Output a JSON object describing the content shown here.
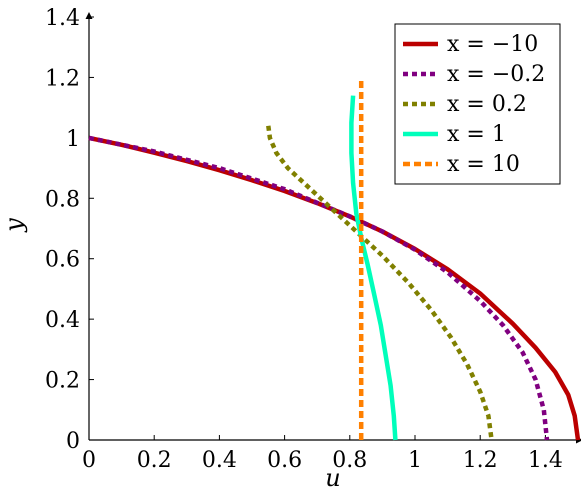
{
  "chart_data": {
    "type": "line",
    "title": "",
    "xlabel": "u",
    "ylabel": "y",
    "xlim": [
      0,
      1.5
    ],
    "ylim": [
      0,
      1.4
    ],
    "xticks": [
      "0",
      "0.2",
      "0.4",
      "0.6",
      "0.8",
      "1",
      "1.2",
      "1.4"
    ],
    "xtick_values": [
      0,
      0.2,
      0.4,
      0.6,
      0.8,
      1,
      1.2,
      1.4
    ],
    "yticks": [
      "0",
      "0.2",
      "0.4",
      "0.6",
      "0.8",
      "1",
      "1.2",
      "1.4"
    ],
    "ytick_values": [
      0,
      0.2,
      0.4,
      0.6,
      0.8,
      1,
      1.2,
      1.4
    ],
    "grid": false,
    "legend_position": "top-right",
    "series": [
      {
        "name": "x = −10",
        "color": "#bb0000",
        "dash": "solid",
        "x": [
          0,
          0.1,
          0.2,
          0.3,
          0.4,
          0.5,
          0.6,
          0.7,
          0.8,
          0.9,
          1.0,
          1.1,
          1.2,
          1.3,
          1.37,
          1.43,
          1.47,
          1.49,
          1.5
        ],
        "y": [
          1.0,
          0.977,
          0.951,
          0.923,
          0.893,
          0.86,
          0.824,
          0.784,
          0.74,
          0.69,
          0.632,
          0.565,
          0.485,
          0.385,
          0.305,
          0.225,
          0.15,
          0.08,
          0.0
        ]
      },
      {
        "name": "x = −0.2",
        "color": "#800080",
        "dash": "dotted",
        "x": [
          0,
          0.2,
          0.4,
          0.6,
          0.8,
          0.9,
          1.0,
          1.1,
          1.2,
          1.27,
          1.33,
          1.37,
          1.395,
          1.405
        ],
        "y": [
          1.0,
          0.955,
          0.9,
          0.83,
          0.74,
          0.69,
          0.63,
          0.555,
          0.46,
          0.38,
          0.29,
          0.2,
          0.1,
          0.0
        ]
      },
      {
        "name": "x = 0.2",
        "color": "#808000",
        "dash": "dotted",
        "x": [
          0.55,
          0.555,
          0.575,
          0.61,
          0.67,
          0.74,
          0.82,
          0.9,
          0.98,
          1.05,
          1.11,
          1.16,
          1.2,
          1.225,
          1.235
        ],
        "y": [
          1.04,
          1.0,
          0.95,
          0.9,
          0.84,
          0.77,
          0.69,
          0.61,
          0.52,
          0.43,
          0.34,
          0.25,
          0.16,
          0.08,
          0.0
        ]
      },
      {
        "name": "x = 1",
        "color": "#00ffbb",
        "dash": "solid",
        "x": [
          0.81,
          0.805,
          0.805,
          0.81,
          0.82,
          0.835,
          0.855,
          0.875,
          0.895,
          0.91,
          0.925,
          0.935,
          0.94
        ],
        "y": [
          1.14,
          1.05,
          0.95,
          0.85,
          0.75,
          0.67,
          0.58,
          0.48,
          0.38,
          0.28,
          0.18,
          0.08,
          0.0
        ]
      },
      {
        "name": "x = 10",
        "color": "#ff8000",
        "dash": "dashed",
        "x": [
          0.835,
          0.835
        ],
        "y": [
          0.0,
          1.19
        ]
      }
    ]
  }
}
